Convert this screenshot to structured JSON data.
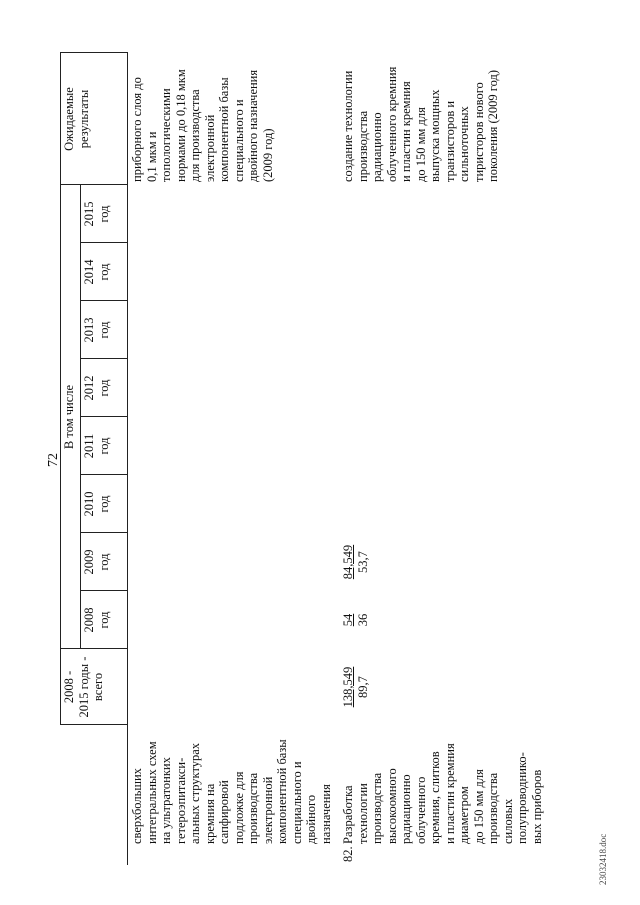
{
  "page_number": "72",
  "table": {
    "header": {
      "total": [
        "2008 -",
        "2015 годы -",
        "всего"
      ],
      "group": "В том числе",
      "years": [
        [
          "2008",
          "год"
        ],
        [
          "2009",
          "год"
        ],
        [
          "2010",
          "год"
        ],
        [
          "2011",
          "год"
        ],
        [
          "2012",
          "год"
        ],
        [
          "2013",
          "год"
        ],
        [
          "2014",
          "год"
        ],
        [
          "2015",
          "год"
        ]
      ],
      "results": [
        "Ожидаемые",
        "результаты"
      ]
    },
    "rows": [
      {
        "description": [
          "сверхбольших",
          "интегральных схем",
          "на ультратонких",
          "гетероэпитакси-",
          "альных структурах",
          "кремния на",
          "сапфировой",
          "подложке для",
          "производства",
          "электронной",
          "компонентной базы",
          "специального и",
          "двойного",
          "назначения"
        ],
        "cells": [
          null,
          null,
          null,
          null,
          null,
          null,
          null,
          null,
          null
        ],
        "results": [
          "приборного слоя до",
          "0,1 мкм и",
          "топологическими",
          "нормами до 0,18 мкм",
          "для производства",
          "электронной",
          "компонентной базы",
          "специального и",
          "двойного назначения",
          "(2009 год)"
        ]
      },
      {
        "number": "82.",
        "description": [
          "Разработка",
          "технологии",
          "производства",
          "высокоомного",
          "радиационно",
          "облученного",
          "кремния, слитков",
          "и пластин кремния",
          "диаметром",
          "до 150 мм для",
          "производства",
          "силовых",
          "полупроводнико-",
          "вых приборов"
        ],
        "cells": [
          [
            "138,549",
            "89,7"
          ],
          [
            "54",
            "36"
          ],
          [
            "84,549",
            "53,7"
          ],
          null,
          null,
          null,
          null,
          null,
          null
        ],
        "results": [
          "создание технологии",
          "производства",
          "радиационно",
          "облученного кремния",
          "и пластин кремния",
          "до 150 мм для",
          "выпуска мощных",
          "транзисторов и",
          "сильноточных",
          "тиристоров нового",
          "поколения (2009 год)"
        ]
      }
    ]
  },
  "footer": "23032418.doc"
}
